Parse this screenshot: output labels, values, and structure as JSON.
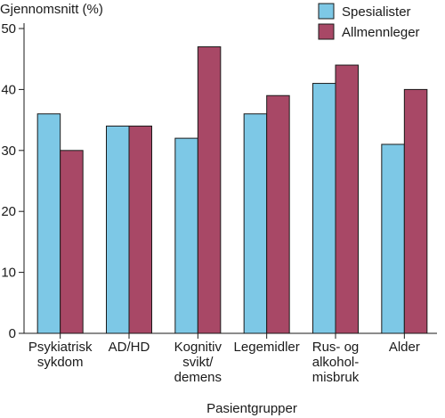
{
  "chart_data": {
    "type": "bar",
    "ylabel": "Gjennomsnitt (%)",
    "xlabel": "Pasientgrupper",
    "ylim": [
      0,
      50
    ],
    "yticks": [
      0,
      10,
      20,
      30,
      40,
      50
    ],
    "grid": false,
    "legend_position": "top-right",
    "categories": [
      [
        "Psykiatrisk",
        "sykdom"
      ],
      [
        "AD/HD"
      ],
      [
        "Kognitiv",
        "svikt/",
        "demens"
      ],
      [
        "Legemidler"
      ],
      [
        "Rus- og",
        "alkohol-",
        "misbruk"
      ],
      [
        "Alder"
      ]
    ],
    "series": [
      {
        "name": "Spesialister",
        "color": "#7dc8e6",
        "values": [
          36,
          34,
          32,
          36,
          41,
          31
        ]
      },
      {
        "name": "Allmennleger",
        "color": "#a84866",
        "values": [
          30,
          34,
          47,
          39,
          44,
          40
        ]
      }
    ]
  }
}
